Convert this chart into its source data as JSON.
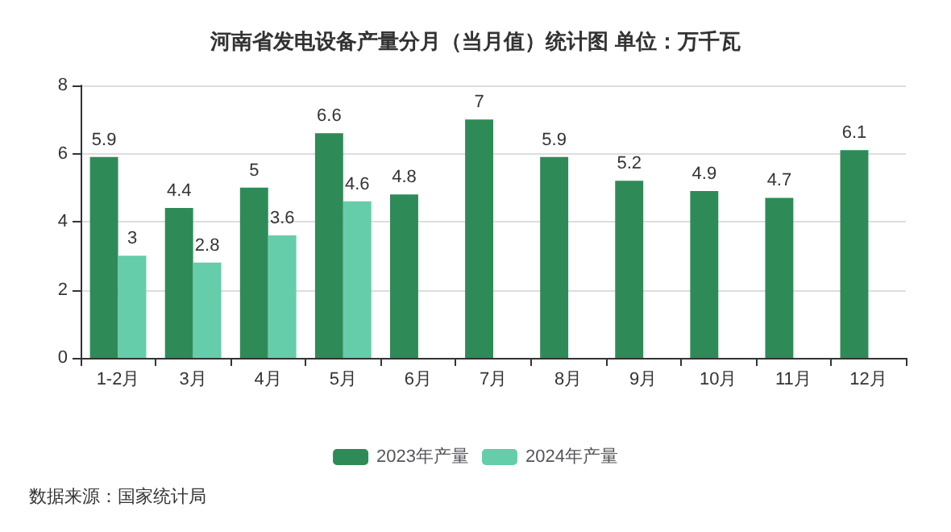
{
  "chart_data": {
    "type": "bar",
    "title": "河南省发电设备产量分月（当月值）统计图 单位：万千瓦",
    "categories": [
      "1-2月",
      "3月",
      "4月",
      "5月",
      "6月",
      "7月",
      "8月",
      "9月",
      "10月",
      "11月",
      "12月"
    ],
    "series": [
      {
        "name": "2023年产量",
        "color": "#2e8b57",
        "values": [
          5.9,
          4.4,
          5,
          6.6,
          4.8,
          7,
          5.9,
          5.2,
          4.9,
          4.7,
          6.1
        ]
      },
      {
        "name": "2024年产量",
        "color": "#66cdaa",
        "values": [
          3,
          2.8,
          3.6,
          4.6,
          null,
          null,
          null,
          null,
          null,
          null,
          null
        ]
      }
    ],
    "ylim": [
      0,
      8
    ],
    "yticks": [
      0,
      2,
      4,
      6,
      8
    ],
    "grid": "y",
    "legend": "bottom",
    "data_labels": true,
    "annotations": [
      "数据来源：国家统计局"
    ]
  }
}
